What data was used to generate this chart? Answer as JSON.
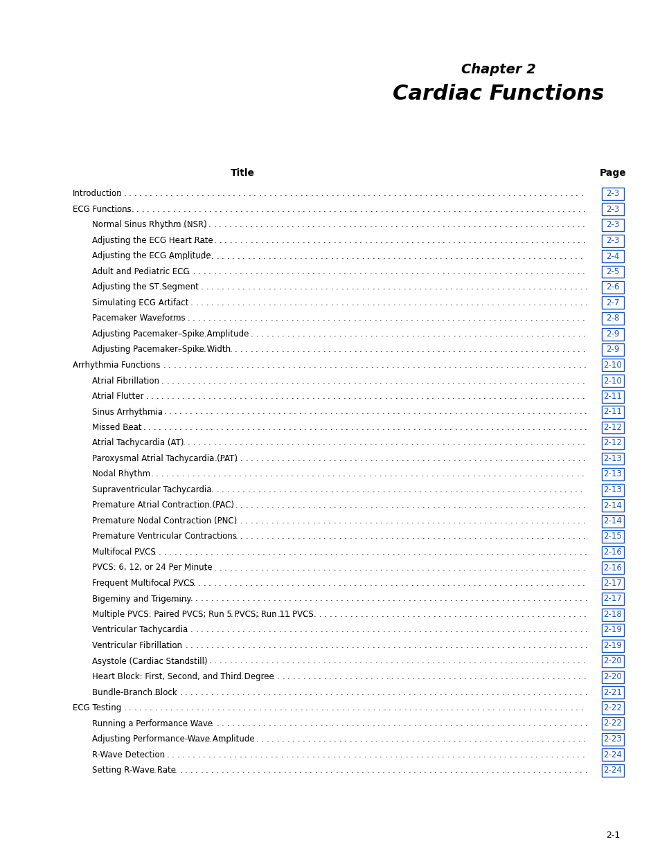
{
  "chapter_label": "Chapter 2",
  "chapter_title": "Cardiac Functions",
  "col_title_left": "Title",
  "col_title_right": "Page",
  "page_number": "2-1",
  "background_color": "#ffffff",
  "text_color": "#000000",
  "link_color": "#1155cc",
  "entries": [
    {
      "text": "Introduction",
      "indent": 0,
      "page": "2-3"
    },
    {
      "text": "ECG Functions",
      "indent": 0,
      "page": "2-3"
    },
    {
      "text": "Normal Sinus Rhythm (NSR)",
      "indent": 1,
      "page": "2-3"
    },
    {
      "text": "Adjusting the ECG Heart Rate ",
      "indent": 1,
      "page": "2-3"
    },
    {
      "text": "Adjusting the ECG Amplitude ",
      "indent": 1,
      "page": "2-4"
    },
    {
      "text": "Adult and Pediatric ECG",
      "indent": 1,
      "page": "2-5"
    },
    {
      "text": "Adjusting the ST Segment",
      "indent": 1,
      "page": "2-6"
    },
    {
      "text": "Simulating ECG Artifact ",
      "indent": 1,
      "page": "2-7"
    },
    {
      "text": "Pacemaker Waveforms",
      "indent": 1,
      "page": "2-8"
    },
    {
      "text": "Adjusting Pacemaker–Spike Amplitude",
      "indent": 1,
      "page": "2-9"
    },
    {
      "text": "Adjusting Pacemaker–Spike Width",
      "indent": 1,
      "page": "2-9"
    },
    {
      "text": "Arrhythmia Functions ",
      "indent": 0,
      "page": "2-10"
    },
    {
      "text": "Atrial Fibrillation",
      "indent": 1,
      "page": "2-10"
    },
    {
      "text": "Atrial Flutter ",
      "indent": 1,
      "page": "2-11"
    },
    {
      "text": "Sinus Arrhythmia",
      "indent": 1,
      "page": "2-11"
    },
    {
      "text": "Missed Beat ",
      "indent": 1,
      "page": "2-12"
    },
    {
      "text": "Atrial Tachycardia (AT)",
      "indent": 1,
      "page": "2-12"
    },
    {
      "text": "Paroxysmal Atrial Tachycardia (PAT)",
      "indent": 1,
      "page": "2-13"
    },
    {
      "text": "Nodal Rhythm ",
      "indent": 1,
      "page": "2-13"
    },
    {
      "text": "Supraventricular Tachycardia",
      "indent": 1,
      "page": "2-13"
    },
    {
      "text": "Premature Atrial Contraction (PAC) ",
      "indent": 1,
      "page": "2-14"
    },
    {
      "text": "Premature Nodal Contraction (PNC)",
      "indent": 1,
      "page": "2-14"
    },
    {
      "text": "Premature Ventricular Contractions ",
      "indent": 1,
      "page": "2-15"
    },
    {
      "text": "Multifocal PVCS ",
      "indent": 1,
      "page": "2-16"
    },
    {
      "text": "PVCS: 6, 12, or 24 Per Minute",
      "indent": 1,
      "page": "2-16"
    },
    {
      "text": "Frequent Multifocal PVCS ",
      "indent": 1,
      "page": "2-17"
    },
    {
      "text": "Bigeminy and Trigeminy",
      "indent": 1,
      "page": "2-17"
    },
    {
      "text": "Multiple PVCS: Paired PVCS; Run 5 PVCS; Run 11 PVCS",
      "indent": 1,
      "page": "2-18"
    },
    {
      "text": "Ventricular Tachycardia ",
      "indent": 1,
      "page": "2-19"
    },
    {
      "text": "Ventricular Fibrillation",
      "indent": 1,
      "page": "2-19"
    },
    {
      "text": "Asystole (Cardiac Standstill)",
      "indent": 1,
      "page": "2-20"
    },
    {
      "text": "Heart Block: First, Second, and Third Degree ",
      "indent": 1,
      "page": "2-20"
    },
    {
      "text": "Bundle-Branch Block ",
      "indent": 1,
      "page": "2-21"
    },
    {
      "text": "ECG Testing ",
      "indent": 0,
      "page": "2-22"
    },
    {
      "text": "Running a Performance Wave",
      "indent": 1,
      "page": "2-22"
    },
    {
      "text": "Adjusting Performance-Wave Amplitude ",
      "indent": 1,
      "page": "2-23"
    },
    {
      "text": "R-Wave Detection ",
      "indent": 1,
      "page": "2-24"
    },
    {
      "text": "Setting R-Wave Rate ",
      "indent": 1,
      "page": "2-24"
    }
  ]
}
